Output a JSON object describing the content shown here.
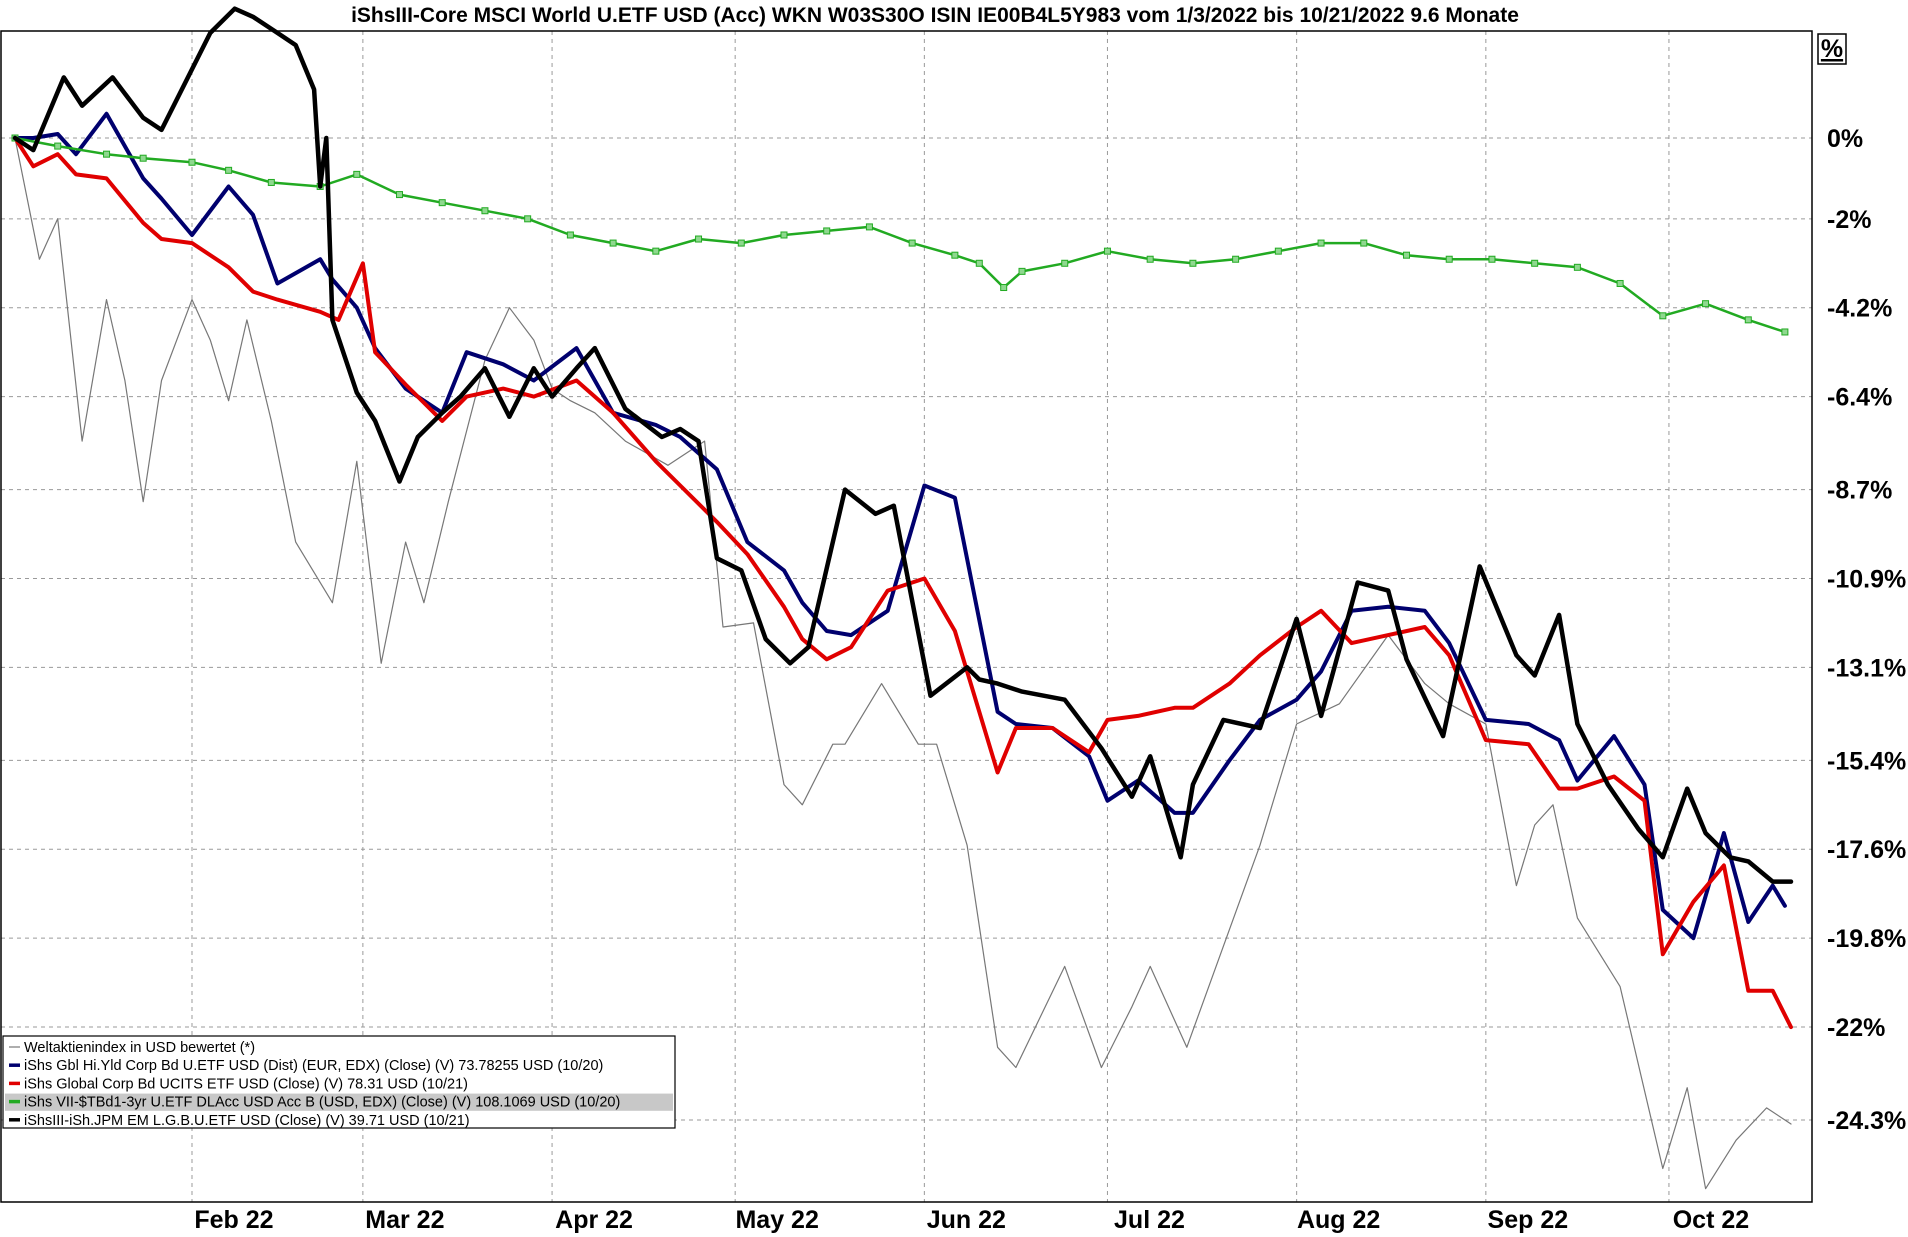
{
  "chart_data": {
    "type": "line",
    "title": "iShsIII-Core MSCI World U.ETF USD (Acc) WKN W03S30O ISIN IE00B4L5Y983 vom 1/3/2022 bis 10/21/2022 9.6 Monate",
    "unit_label": "%",
    "xlabel": "",
    "ylabel": "",
    "x_ticks": [
      "Feb 22",
      "Mar 22",
      "Apr 22",
      "May 22",
      "Jun 22",
      "Jul 22",
      "Aug 22",
      "Sep 22",
      "Oct 22"
    ],
    "x_tick_dates": [
      "2022-02-01",
      "2022-03-01",
      "2022-04-01",
      "2022-05-01",
      "2022-06-01",
      "2022-07-01",
      "2022-08-01",
      "2022-09-01",
      "2022-10-01"
    ],
    "xlim": [
      "2022-01-03",
      "2022-10-21"
    ],
    "y_ticks": [
      "0%",
      "-2%",
      "-4.2%",
      "-6.4%",
      "-8.7%",
      "-10.9%",
      "-13.1%",
      "-15.4%",
      "-17.6%",
      "-19.8%",
      "-22%",
      "-24.3%"
    ],
    "y_tick_values": [
      0,
      -2,
      -4.2,
      -6.4,
      -8.7,
      -10.9,
      -13.1,
      -15.4,
      -17.6,
      -19.8,
      -22,
      -24.3
    ],
    "ylim": [
      -27.5,
      3
    ],
    "grid": true,
    "legend_position": "bottom-left",
    "colors": {
      "world": "#777777",
      "hy": "#00006e",
      "corp": "#e00000",
      "tbond": "#22aa22",
      "em": "#000000"
    },
    "series": [
      {
        "name": "Weltaktienindex in USD bewertet (*)",
        "color": "#777777",
        "x": [
          "2022-01-03",
          "2022-01-07",
          "2022-01-10",
          "2022-01-14",
          "2022-01-18",
          "2022-01-21",
          "2022-01-24",
          "2022-01-27",
          "2022-02-01",
          "2022-02-04",
          "2022-02-07",
          "2022-02-10",
          "2022-02-14",
          "2022-02-18",
          "2022-02-24",
          "2022-02-28",
          "2022-03-04",
          "2022-03-08",
          "2022-03-11",
          "2022-03-15",
          "2022-03-21",
          "2022-03-25",
          "2022-03-29",
          "2022-04-01",
          "2022-04-04",
          "2022-04-08",
          "2022-04-13",
          "2022-04-20",
          "2022-04-26",
          "2022-04-29",
          "2022-05-04",
          "2022-05-09",
          "2022-05-12",
          "2022-05-17",
          "2022-05-19",
          "2022-05-25",
          "2022-05-31",
          "2022-06-03",
          "2022-06-08",
          "2022-06-13",
          "2022-06-16",
          "2022-06-24",
          "2022-06-30",
          "2022-07-05",
          "2022-07-08",
          "2022-07-14",
          "2022-07-20",
          "2022-07-26",
          "2022-08-01",
          "2022-08-08",
          "2022-08-16",
          "2022-08-22",
          "2022-08-26",
          "2022-09-01",
          "2022-09-06",
          "2022-09-09",
          "2022-09-12",
          "2022-09-16",
          "2022-09-23",
          "2022-09-30",
          "2022-10-04",
          "2022-10-07",
          "2022-10-12",
          "2022-10-17",
          "2022-10-21"
        ],
        "y": [
          0,
          -3,
          -2,
          -7.5,
          -4,
          -6,
          -9,
          -6,
          -4,
          -5,
          -6.5,
          -4.5,
          -7,
          -10,
          -11.5,
          -8,
          -13,
          -10,
          -11.5,
          -9,
          -5.5,
          -4.2,
          -5,
          -6.2,
          -6.5,
          -6.8,
          -7.5,
          -8.1,
          -7.5,
          -12.1,
          -12,
          -16,
          -16.5,
          -15,
          -15,
          -13.5,
          -15,
          -15,
          -17.5,
          -22.5,
          -23,
          -20.5,
          -23,
          -21.5,
          -20.5,
          -22.5,
          -20,
          -17.5,
          -14.5,
          -14,
          -12.3,
          -13.5,
          -14,
          -14.5,
          -18.5,
          -17,
          -16.5,
          -19.3,
          -21,
          -25.5,
          -23.5,
          -26,
          -24.8,
          -24,
          -24.4
        ]
      },
      {
        "name": "iShs Gbl Hi.Yld Corp Bd U.ETF USD (Dist) (EUR, EDX) (Close) (V) 73.78255 USD (10/20)",
        "color": "#00006e",
        "x": [
          "2022-01-03",
          "2022-01-06",
          "2022-01-10",
          "2022-01-13",
          "2022-01-18",
          "2022-01-24",
          "2022-01-27",
          "2022-02-01",
          "2022-02-07",
          "2022-02-11",
          "2022-02-15",
          "2022-02-22",
          "2022-02-24",
          "2022-02-28",
          "2022-03-03",
          "2022-03-08",
          "2022-03-14",
          "2022-03-18",
          "2022-03-24",
          "2022-03-29",
          "2022-04-05",
          "2022-04-11",
          "2022-04-18",
          "2022-04-22",
          "2022-04-28",
          "2022-05-03",
          "2022-05-09",
          "2022-05-12",
          "2022-05-16",
          "2022-05-20",
          "2022-05-26",
          "2022-06-01",
          "2022-06-06",
          "2022-06-13",
          "2022-06-16",
          "2022-06-22",
          "2022-06-28",
          "2022-07-01",
          "2022-07-06",
          "2022-07-12",
          "2022-07-15",
          "2022-07-21",
          "2022-07-26",
          "2022-08-01",
          "2022-08-05",
          "2022-08-10",
          "2022-08-16",
          "2022-08-22",
          "2022-08-26",
          "2022-09-01",
          "2022-09-08",
          "2022-09-13",
          "2022-09-16",
          "2022-09-22",
          "2022-09-27",
          "2022-09-30",
          "2022-10-05",
          "2022-10-10",
          "2022-10-14",
          "2022-10-18",
          "2022-10-20"
        ],
        "y": [
          0,
          0,
          0.1,
          -0.4,
          0.6,
          -1,
          -1.5,
          -2.4,
          -1.2,
          -1.9,
          -3.6,
          -3,
          -3.5,
          -4.2,
          -5.2,
          -6.2,
          -6.8,
          -5.3,
          -5.6,
          -6,
          -5.2,
          -6.8,
          -7.1,
          -7.4,
          -8.2,
          -10,
          -10.7,
          -11.5,
          -12.2,
          -12.3,
          -11.7,
          -8.6,
          -8.9,
          -14.2,
          -14.5,
          -14.6,
          -15.3,
          -16.4,
          -15.9,
          -16.7,
          -16.7,
          -15.4,
          -14.4,
          -13.9,
          -13.2,
          -11.7,
          -11.6,
          -11.7,
          -12.5,
          -14.4,
          -14.5,
          -14.9,
          -15.9,
          -14.8,
          -16,
          -19.1,
          -19.8,
          -17.2,
          -19.4,
          -18.5,
          -19
        ]
      },
      {
        "name": "iShs Global Corp Bd UCITS ETF USD (Close) (V) 78.31 USD (10/21)",
        "color": "#e00000",
        "x": [
          "2022-01-03",
          "2022-01-06",
          "2022-01-10",
          "2022-01-13",
          "2022-01-18",
          "2022-01-24",
          "2022-01-27",
          "2022-02-01",
          "2022-02-07",
          "2022-02-11",
          "2022-02-15",
          "2022-02-22",
          "2022-02-25",
          "2022-03-01",
          "2022-03-03",
          "2022-03-08",
          "2022-03-14",
          "2022-03-18",
          "2022-03-24",
          "2022-03-29",
          "2022-04-05",
          "2022-04-11",
          "2022-04-18",
          "2022-04-22",
          "2022-04-28",
          "2022-05-03",
          "2022-05-09",
          "2022-05-12",
          "2022-05-16",
          "2022-05-20",
          "2022-05-26",
          "2022-06-01",
          "2022-06-06",
          "2022-06-13",
          "2022-06-16",
          "2022-06-22",
          "2022-06-28",
          "2022-07-01",
          "2022-07-06",
          "2022-07-12",
          "2022-07-15",
          "2022-07-21",
          "2022-07-26",
          "2022-08-01",
          "2022-08-05",
          "2022-08-10",
          "2022-08-16",
          "2022-08-22",
          "2022-08-26",
          "2022-09-01",
          "2022-09-08",
          "2022-09-13",
          "2022-09-16",
          "2022-09-22",
          "2022-09-27",
          "2022-09-30",
          "2022-10-05",
          "2022-10-10",
          "2022-10-14",
          "2022-10-18",
          "2022-10-21"
        ],
        "y": [
          0,
          -0.7,
          -0.4,
          -0.9,
          -1,
          -2.1,
          -2.5,
          -2.6,
          -3.2,
          -3.8,
          -4,
          -4.3,
          -4.5,
          -3.1,
          -5.3,
          -6.1,
          -7,
          -6.4,
          -6.2,
          -6.4,
          -6,
          -6.8,
          -8,
          -8.6,
          -9.5,
          -10.3,
          -11.6,
          -12.4,
          -12.9,
          -12.6,
          -11.2,
          -10.9,
          -12.2,
          -15.7,
          -14.6,
          -14.6,
          -15.2,
          -14.4,
          -14.3,
          -14.1,
          -14.1,
          -13.5,
          -12.8,
          -12.1,
          -11.7,
          -12.5,
          -12.3,
          -12.1,
          -12.8,
          -14.9,
          -15,
          -16.1,
          -16.1,
          -15.8,
          -16.4,
          -20.2,
          -18.9,
          -18,
          -21.1,
          -21.1,
          -22
        ]
      },
      {
        "name": "iShs VII-$TBd1-3yr U.ETF DLAcc USD Acc B (USD, EDX) (Close) (V) 108.1069 USD (10/20)",
        "color": "#22aa22",
        "x": [
          "2022-01-03",
          "2022-01-10",
          "2022-01-18",
          "2022-01-24",
          "2022-02-01",
          "2022-02-07",
          "2022-02-14",
          "2022-02-22",
          "2022-02-28",
          "2022-03-07",
          "2022-03-14",
          "2022-03-21",
          "2022-03-28",
          "2022-04-04",
          "2022-04-11",
          "2022-04-18",
          "2022-04-25",
          "2022-05-02",
          "2022-05-09",
          "2022-05-16",
          "2022-05-23",
          "2022-05-30",
          "2022-06-06",
          "2022-06-10",
          "2022-06-14",
          "2022-06-17",
          "2022-06-24",
          "2022-07-01",
          "2022-07-08",
          "2022-07-15",
          "2022-07-22",
          "2022-07-29",
          "2022-08-05",
          "2022-08-12",
          "2022-08-19",
          "2022-08-26",
          "2022-09-02",
          "2022-09-09",
          "2022-09-16",
          "2022-09-23",
          "2022-09-30",
          "2022-10-07",
          "2022-10-14",
          "2022-10-20"
        ],
        "y": [
          0,
          -0.2,
          -0.4,
          -0.5,
          -0.6,
          -0.8,
          -1.1,
          -1.2,
          -0.9,
          -1.4,
          -1.6,
          -1.8,
          -2,
          -2.4,
          -2.6,
          -2.8,
          -2.5,
          -2.6,
          -2.4,
          -2.3,
          -2.2,
          -2.6,
          -2.9,
          -3.1,
          -3.7,
          -3.3,
          -3.1,
          -2.8,
          -3,
          -3.1,
          -3,
          -2.8,
          -2.6,
          -2.6,
          -2.9,
          -3,
          -3,
          -3.1,
          -3.2,
          -3.6,
          -4.4,
          -4.1,
          -4.5,
          -4.8
        ]
      },
      {
        "name": "iShsIII-iSh.JPM EM L.G.B.U.ETF USD (Close) (V) 39.71 USD (10/21)",
        "color": "#000000",
        "x": [
          "2022-01-03",
          "2022-01-06",
          "2022-01-11",
          "2022-01-14",
          "2022-01-19",
          "2022-01-24",
          "2022-01-27",
          "2022-02-01",
          "2022-02-04",
          "2022-02-08",
          "2022-02-11",
          "2022-02-15",
          "2022-02-18",
          "2022-02-21",
          "2022-02-22",
          "2022-02-23",
          "2022-02-24",
          "2022-02-28",
          "2022-03-03",
          "2022-03-07",
          "2022-03-10",
          "2022-03-14",
          "2022-03-17",
          "2022-03-21",
          "2022-03-25",
          "2022-03-29",
          "2022-04-01",
          "2022-04-05",
          "2022-04-08",
          "2022-04-13",
          "2022-04-19",
          "2022-04-22",
          "2022-04-25",
          "2022-04-28",
          "2022-05-02",
          "2022-05-06",
          "2022-05-10",
          "2022-05-13",
          "2022-05-19",
          "2022-05-24",
          "2022-05-27",
          "2022-06-02",
          "2022-06-08",
          "2022-06-10",
          "2022-06-13",
          "2022-06-17",
          "2022-06-24",
          "2022-06-30",
          "2022-07-05",
          "2022-07-08",
          "2022-07-13",
          "2022-07-15",
          "2022-07-20",
          "2022-07-26",
          "2022-08-01",
          "2022-08-05",
          "2022-08-11",
          "2022-08-16",
          "2022-08-19",
          "2022-08-25",
          "2022-08-31",
          "2022-09-06",
          "2022-09-09",
          "2022-09-13",
          "2022-09-16",
          "2022-09-21",
          "2022-09-26",
          "2022-09-30",
          "2022-10-04",
          "2022-10-07",
          "2022-10-11",
          "2022-10-14",
          "2022-10-18",
          "2022-10-21"
        ],
        "y": [
          0,
          -0.3,
          1.5,
          0.8,
          1.5,
          0.5,
          0.2,
          1.7,
          2.6,
          3.2,
          3,
          2.6,
          2.3,
          1.2,
          -1.2,
          0,
          -4.5,
          -6.3,
          -7,
          -8.5,
          -7.4,
          -6.8,
          -6.4,
          -5.7,
          -6.9,
          -5.7,
          -6.4,
          -5.7,
          -5.2,
          -6.7,
          -7.4,
          -7.2,
          -7.5,
          -10.4,
          -10.7,
          -12.4,
          -13,
          -12.6,
          -8.7,
          -9.3,
          -9.1,
          -13.8,
          -13.1,
          -13.4,
          -13.5,
          -13.7,
          -13.9,
          -15.1,
          -16.3,
          -15.3,
          -17.8,
          -16,
          -14.4,
          -14.6,
          -11.9,
          -14.3,
          -11,
          -11.2,
          -12.9,
          -14.8,
          -10.6,
          -12.8,
          -13.3,
          -11.8,
          -14.5,
          -16,
          -17.1,
          -17.8,
          -16.1,
          -17.2,
          -17.8,
          -17.9,
          -18.4,
          -18.4
        ]
      }
    ]
  }
}
